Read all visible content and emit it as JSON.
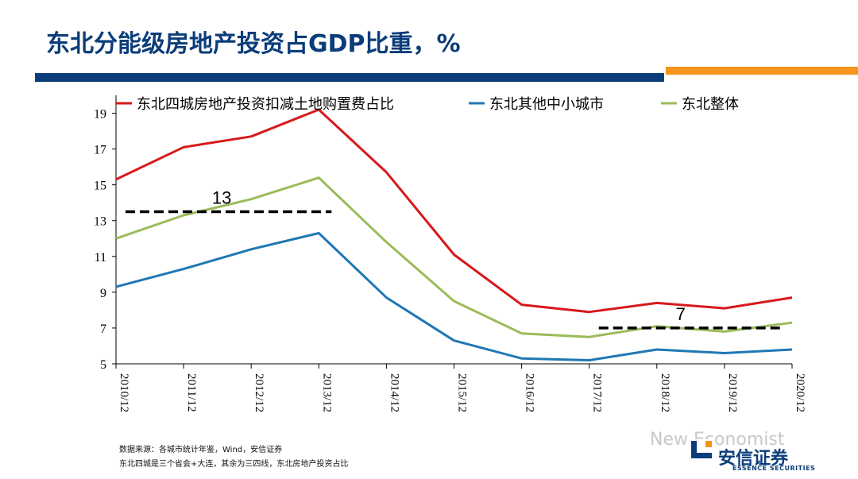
{
  "title": "东北分能级房地产投资占GDP比重，%",
  "chart_data": {
    "type": "line",
    "categories": [
      "2010/12",
      "2011/12",
      "2012/12",
      "2013/12",
      "2014/12",
      "2015/12",
      "2016/12",
      "2017/12",
      "2018/12",
      "2019/12",
      "2020/12"
    ],
    "series": [
      {
        "name": "东北四城房地产投资扣减土地购置费占比",
        "color": "#d7191c",
        "values": [
          15.3,
          17.1,
          17.7,
          19.2,
          15.7,
          11.1,
          8.3,
          7.9,
          8.4,
          8.1,
          8.7
        ]
      },
      {
        "name": "东北其他中小城市",
        "color": "#1f78b4",
        "values": [
          9.3,
          10.3,
          11.4,
          12.3,
          8.7,
          6.3,
          5.3,
          5.2,
          5.8,
          5.6,
          5.8
        ]
      },
      {
        "name": "东北整体",
        "color": "#9bbb59",
        "values": [
          12.0,
          13.3,
          14.2,
          15.4,
          11.8,
          8.5,
          6.7,
          6.5,
          7.1,
          6.8,
          7.3
        ]
      }
    ],
    "yticks": [
      5,
      7,
      9,
      11,
      13,
      15,
      17,
      19
    ],
    "ylim": [
      5,
      20
    ],
    "reference_lines": [
      {
        "value": 13.5,
        "label": "13",
        "from": "2010/12",
        "to": "2013/12"
      },
      {
        "value": 7.0,
        "label": "7",
        "from": "2017/12",
        "to": "2020/12"
      }
    ],
    "legend_position": "top"
  },
  "footnotes": {
    "source": "数据来源：各城市统计年鉴，Wind，安信证券",
    "note": "东北四城是三个省会+大连，其余为三四线，东北房地产投资占比"
  },
  "watermark": "New Economist",
  "logo": {
    "cn": "安信证券",
    "en": "ESSENCE SECURITIES"
  },
  "colors": {
    "brand_blue": "#0b3d7a",
    "brand_orange": "#f7941d"
  }
}
